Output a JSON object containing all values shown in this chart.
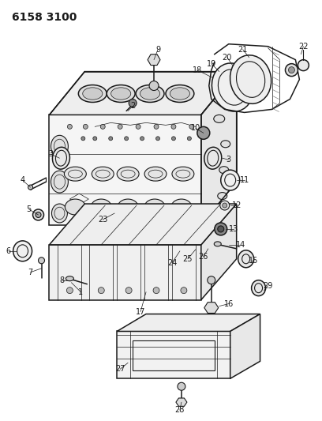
{
  "title": "6158 3100",
  "bg_color": "#ffffff",
  "line_color": "#1a1a1a",
  "title_fontsize": 10,
  "label_fontsize": 7,
  "figsize": [
    4.08,
    5.33
  ],
  "dpi": 100
}
